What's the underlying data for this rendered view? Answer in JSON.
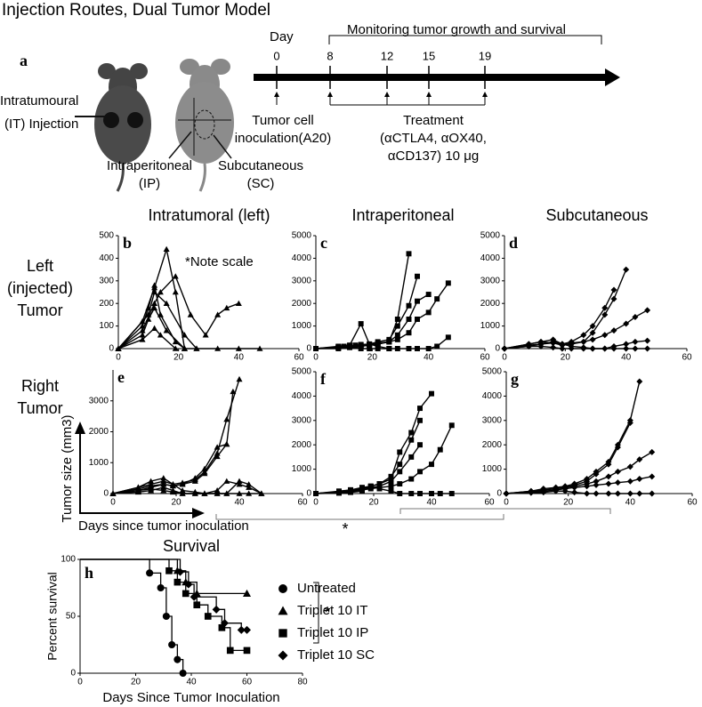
{
  "title": "Injection Routes, Dual Tumor Model",
  "panel_a": {
    "letter": "a",
    "it_label": [
      "Intratumoural",
      "(IT) Injection"
    ],
    "ip_label": [
      "Intraperitoneal",
      "(IP)"
    ],
    "sc_label": [
      "Subcutaneous",
      "(SC)"
    ],
    "timeline": {
      "day_label": "Day",
      "days": [
        0,
        8,
        12,
        15,
        19
      ],
      "monitoring": "Monitoring tumor growth and survival",
      "inoculation": [
        "Tumor cell",
        "inoculation(A20)"
      ],
      "treatment": [
        "Treatment",
        "(αCTLA4, αOX40,",
        "αCD137) 10 μg"
      ]
    }
  },
  "column_headers": [
    "Intratumoral (left)",
    "Intraperitoneal",
    "Subcutaneous"
  ],
  "row_labels": [
    [
      "Left",
      "(injected)",
      "Tumor"
    ],
    [
      "Right",
      "Tumor"
    ]
  ],
  "y_axis_label": "Tumor size (mm3)",
  "x_axis_label": "Days since tumor inoculation",
  "significance": "*",
  "chart_data": [
    {
      "type": "line",
      "panel": "b",
      "note": "*Note scale",
      "marker": "triangle",
      "color": "#000000",
      "xlim": [
        0,
        60
      ],
      "xticks": [
        0,
        20,
        40,
        60
      ],
      "ylim": [
        0,
        500
      ],
      "yticks": [
        0,
        100,
        200,
        300,
        400,
        500
      ],
      "series": [
        {
          "x": [
            0,
            8,
            12,
            16,
            19,
            22,
            26
          ],
          "values": [
            0,
            120,
            270,
            440,
            250,
            0,
            0
          ]
        },
        {
          "x": [
            0,
            8,
            12,
            14,
            19,
            24,
            29,
            33,
            36,
            40
          ],
          "values": [
            0,
            80,
            200,
            250,
            320,
            150,
            60,
            150,
            180,
            200
          ]
        },
        {
          "x": [
            0,
            8,
            10,
            12,
            14,
            19,
            22
          ],
          "values": [
            0,
            100,
            180,
            280,
            150,
            30,
            0
          ]
        },
        {
          "x": [
            0,
            8,
            10,
            12,
            16,
            22
          ],
          "values": [
            0,
            60,
            130,
            180,
            80,
            0
          ]
        },
        {
          "x": [
            0,
            8,
            12,
            14,
            19
          ],
          "values": [
            0,
            40,
            90,
            60,
            0
          ]
        },
        {
          "x": [
            0,
            10,
            12,
            16,
            22,
            26,
            33,
            40,
            47
          ],
          "values": [
            0,
            150,
            250,
            200,
            60,
            0,
            0,
            0,
            0
          ]
        }
      ]
    },
    {
      "type": "line",
      "panel": "c",
      "marker": "square",
      "color": "#000000",
      "xlim": [
        0,
        60
      ],
      "xticks": [
        0,
        20,
        40,
        60
      ],
      "ylim": [
        0,
        5000
      ],
      "yticks": [
        0,
        1000,
        2000,
        3000,
        4000,
        5000
      ],
      "series": [
        {
          "x": [
            0,
            8,
            10,
            12,
            14,
            16,
            19,
            22,
            26,
            29,
            33
          ],
          "values": [
            0,
            80,
            100,
            120,
            150,
            180,
            200,
            250,
            300,
            1300,
            4200
          ]
        },
        {
          "x": [
            0,
            8,
            12,
            16,
            19,
            22,
            26,
            29,
            33,
            36
          ],
          "values": [
            0,
            60,
            100,
            150,
            200,
            300,
            400,
            1000,
            1900,
            3200
          ]
        },
        {
          "x": [
            0,
            8,
            12,
            16,
            19,
            22,
            26,
            29,
            33,
            36,
            40,
            43,
            47
          ],
          "values": [
            0,
            50,
            80,
            100,
            150,
            200,
            300,
            400,
            700,
            1300,
            1600,
            2200,
            2900
          ]
        },
        {
          "x": [
            0,
            8,
            12,
            16,
            19,
            22,
            26,
            29,
            33,
            36,
            40
          ],
          "values": [
            0,
            40,
            60,
            100,
            150,
            200,
            300,
            600,
            1300,
            2100,
            2400
          ]
        },
        {
          "x": [
            0,
            8,
            12,
            16,
            19,
            22,
            26
          ],
          "values": [
            0,
            100,
            150,
            1100,
            200,
            100,
            0
          ]
        },
        {
          "x": [
            0,
            8,
            12,
            16,
            19,
            22,
            26,
            29,
            33,
            36,
            40,
            43,
            47
          ],
          "values": [
            0,
            0,
            50,
            0,
            0,
            0,
            0,
            0,
            0,
            0,
            0,
            100,
            500
          ]
        }
      ]
    },
    {
      "type": "line",
      "panel": "d",
      "marker": "diamond",
      "color": "#000000",
      "xlim": [
        0,
        60
      ],
      "xticks": [
        0,
        20,
        40,
        60
      ],
      "ylim": [
        0,
        5000
      ],
      "yticks": [
        0,
        1000,
        2000,
        3000,
        4000,
        5000
      ],
      "series": [
        {
          "x": [
            0,
            8,
            12,
            16,
            19,
            22,
            26,
            29,
            33,
            36,
            40
          ],
          "values": [
            0,
            150,
            200,
            250,
            150,
            200,
            300,
            700,
            1500,
            2200,
            3500
          ]
        },
        {
          "x": [
            0,
            8,
            12,
            16,
            19,
            22,
            26,
            29,
            33,
            36
          ],
          "values": [
            0,
            200,
            300,
            250,
            200,
            300,
            600,
            1000,
            1800,
            2600
          ]
        },
        {
          "x": [
            0,
            8,
            12,
            16,
            19,
            22,
            26,
            29,
            33,
            36,
            40,
            43,
            47
          ],
          "values": [
            0,
            100,
            200,
            300,
            200,
            250,
            300,
            400,
            600,
            800,
            1100,
            1400,
            1700
          ]
        },
        {
          "x": [
            0,
            8,
            12,
            16,
            19,
            22,
            26,
            29,
            33,
            36,
            40,
            43,
            47
          ],
          "values": [
            0,
            200,
            300,
            400,
            200,
            100,
            50,
            0,
            0,
            100,
            200,
            300,
            350
          ]
        },
        {
          "x": [
            0,
            8,
            12,
            16,
            19,
            22,
            26,
            29,
            33,
            36,
            40,
            43,
            47
          ],
          "values": [
            0,
            100,
            100,
            50,
            0,
            0,
            0,
            0,
            0,
            0,
            0,
            0,
            0
          ]
        }
      ]
    },
    {
      "type": "line",
      "panel": "e",
      "marker": "triangle",
      "color": "#000000",
      "xlim": [
        0,
        60
      ],
      "xticks": [
        0,
        20,
        40,
        60
      ],
      "ylim": [
        0,
        4000
      ],
      "yticks": [
        0,
        1000,
        2000,
        3000
      ],
      "series": [
        {
          "x": [
            0,
            8,
            12,
            16,
            19,
            22,
            26,
            29,
            33,
            36,
            40
          ],
          "values": [
            0,
            200,
            300,
            400,
            300,
            350,
            450,
            700,
            1300,
            2400,
            3700
          ]
        },
        {
          "x": [
            0,
            8,
            12,
            16,
            19,
            22,
            26,
            29,
            33,
            36,
            38
          ],
          "values": [
            0,
            150,
            250,
            300,
            250,
            300,
            400,
            650,
            1200,
            1600,
            3300
          ]
        },
        {
          "x": [
            0,
            8,
            12,
            16,
            19,
            22,
            26,
            29,
            33,
            36
          ],
          "values": [
            0,
            100,
            200,
            300,
            250,
            300,
            500,
            800,
            1500,
            1600
          ]
        },
        {
          "x": [
            0,
            8,
            12,
            16,
            19,
            22,
            26,
            29,
            33,
            36,
            40,
            43,
            47
          ],
          "values": [
            0,
            200,
            400,
            500,
            300,
            100,
            50,
            0,
            100,
            400,
            300,
            200,
            0
          ]
        },
        {
          "x": [
            0,
            8,
            12,
            16,
            19,
            22,
            26,
            29,
            33,
            36,
            40,
            43,
            47
          ],
          "values": [
            0,
            100,
            150,
            100,
            50,
            0,
            0,
            0,
            0,
            0,
            400,
            300,
            0
          ]
        },
        {
          "x": [
            0,
            8,
            12,
            16,
            19,
            22,
            26,
            29,
            33,
            36,
            40,
            43,
            47
          ],
          "values": [
            0,
            50,
            100,
            200,
            100,
            0,
            0,
            0,
            0,
            0,
            0,
            0,
            0
          ]
        }
      ]
    },
    {
      "type": "line",
      "panel": "f",
      "marker": "square",
      "color": "#000000",
      "xlim": [
        0,
        60
      ],
      "xticks": [
        0,
        20,
        40,
        60
      ],
      "ylim": [
        0,
        5000
      ],
      "yticks": [
        0,
        1000,
        2000,
        3000,
        4000,
        5000
      ],
      "series": [
        {
          "x": [
            0,
            8,
            12,
            16,
            19,
            22,
            26,
            29,
            33,
            36,
            40
          ],
          "values": [
            0,
            100,
            150,
            200,
            300,
            400,
            600,
            1700,
            2500,
            3500,
            4100
          ]
        },
        {
          "x": [
            0,
            8,
            12,
            16,
            19,
            22,
            26,
            29,
            33,
            36
          ],
          "values": [
            0,
            80,
            150,
            250,
            300,
            400,
            700,
            1200,
            2200,
            3000
          ]
        },
        {
          "x": [
            0,
            8,
            12,
            16,
            19,
            22,
            26,
            29,
            33,
            36
          ],
          "values": [
            0,
            60,
            100,
            200,
            250,
            300,
            500,
            900,
            1500,
            2000
          ]
        },
        {
          "x": [
            0,
            8,
            12,
            16,
            19,
            22,
            26,
            29,
            33,
            36,
            40,
            43,
            47
          ],
          "values": [
            0,
            50,
            80,
            150,
            200,
            250,
            300,
            400,
            600,
            900,
            1200,
            1800,
            2800
          ]
        },
        {
          "x": [
            0,
            8,
            12,
            16,
            19,
            22,
            26,
            29,
            33,
            36,
            40,
            43,
            47
          ],
          "values": [
            0,
            20,
            50,
            100,
            300,
            200,
            100,
            0,
            0,
            0,
            0,
            0,
            0
          ]
        }
      ]
    },
    {
      "type": "line",
      "panel": "g",
      "marker": "diamond",
      "color": "#000000",
      "xlim": [
        0,
        60
      ],
      "xticks": [
        0,
        20,
        40,
        60
      ],
      "ylim": [
        0,
        5000
      ],
      "yticks": [
        0,
        1000,
        2000,
        3000,
        4000,
        5000
      ],
      "series": [
        {
          "x": [
            0,
            8,
            12,
            16,
            19,
            22,
            26,
            29,
            33,
            36,
            40,
            43
          ],
          "values": [
            0,
            100,
            200,
            250,
            300,
            400,
            600,
            900,
            1300,
            2000,
            3000,
            4600
          ]
        },
        {
          "x": [
            0,
            8,
            12,
            16,
            19,
            22,
            26,
            29,
            33,
            36,
            40
          ],
          "values": [
            0,
            100,
            150,
            200,
            250,
            350,
            500,
            800,
            1200,
            1900,
            2900
          ]
        },
        {
          "x": [
            0,
            8,
            12,
            16,
            19,
            22,
            26,
            29,
            33,
            36,
            40,
            43,
            47
          ],
          "values": [
            0,
            80,
            150,
            200,
            250,
            300,
            400,
            500,
            700,
            900,
            1100,
            1400,
            1700
          ]
        },
        {
          "x": [
            0,
            8,
            12,
            16,
            19,
            22,
            26,
            29,
            33,
            36,
            40,
            43,
            47
          ],
          "values": [
            0,
            50,
            100,
            150,
            200,
            250,
            300,
            350,
            400,
            450,
            500,
            600,
            700
          ]
        },
        {
          "x": [
            0,
            8,
            12,
            16,
            19,
            22,
            26,
            29,
            33,
            36,
            40,
            43,
            47
          ],
          "values": [
            0,
            30,
            50,
            100,
            100,
            50,
            0,
            0,
            0,
            0,
            0,
            0,
            0
          ]
        }
      ]
    },
    {
      "type": "step",
      "panel": "h",
      "title": "Survival",
      "xlabel": "Days Since Tumor Inoculation",
      "ylabel": "Percent survival",
      "significance": "*",
      "color": "#000000",
      "xlim": [
        0,
        80
      ],
      "xticks": [
        0,
        20,
        40,
        60,
        80
      ],
      "ylim": [
        0,
        100
      ],
      "yticks": [
        0,
        50,
        100
      ],
      "series": [
        {
          "name": "Untreated",
          "marker": "circle",
          "x": [
            0,
            25,
            29,
            31,
            33,
            35,
            37
          ],
          "values": [
            100,
            88,
            75,
            50,
            25,
            12,
            0
          ]
        },
        {
          "name": "Triplet 10 IT",
          "marker": "triangle",
          "x": [
            0,
            35,
            38,
            42,
            60
          ],
          "values": [
            100,
            90,
            80,
            70,
            70
          ]
        },
        {
          "name": "Triplet 10 IP",
          "marker": "square",
          "x": [
            0,
            32,
            35,
            38,
            42,
            46,
            51,
            54,
            60
          ],
          "values": [
            100,
            90,
            80,
            70,
            60,
            50,
            40,
            20,
            20
          ]
        },
        {
          "name": "Triplet 10 SC",
          "marker": "diamond",
          "x": [
            0,
            36,
            39,
            41,
            49,
            52,
            58,
            60
          ],
          "values": [
            100,
            89,
            78,
            67,
            56,
            44,
            38,
            38
          ]
        }
      ]
    }
  ]
}
